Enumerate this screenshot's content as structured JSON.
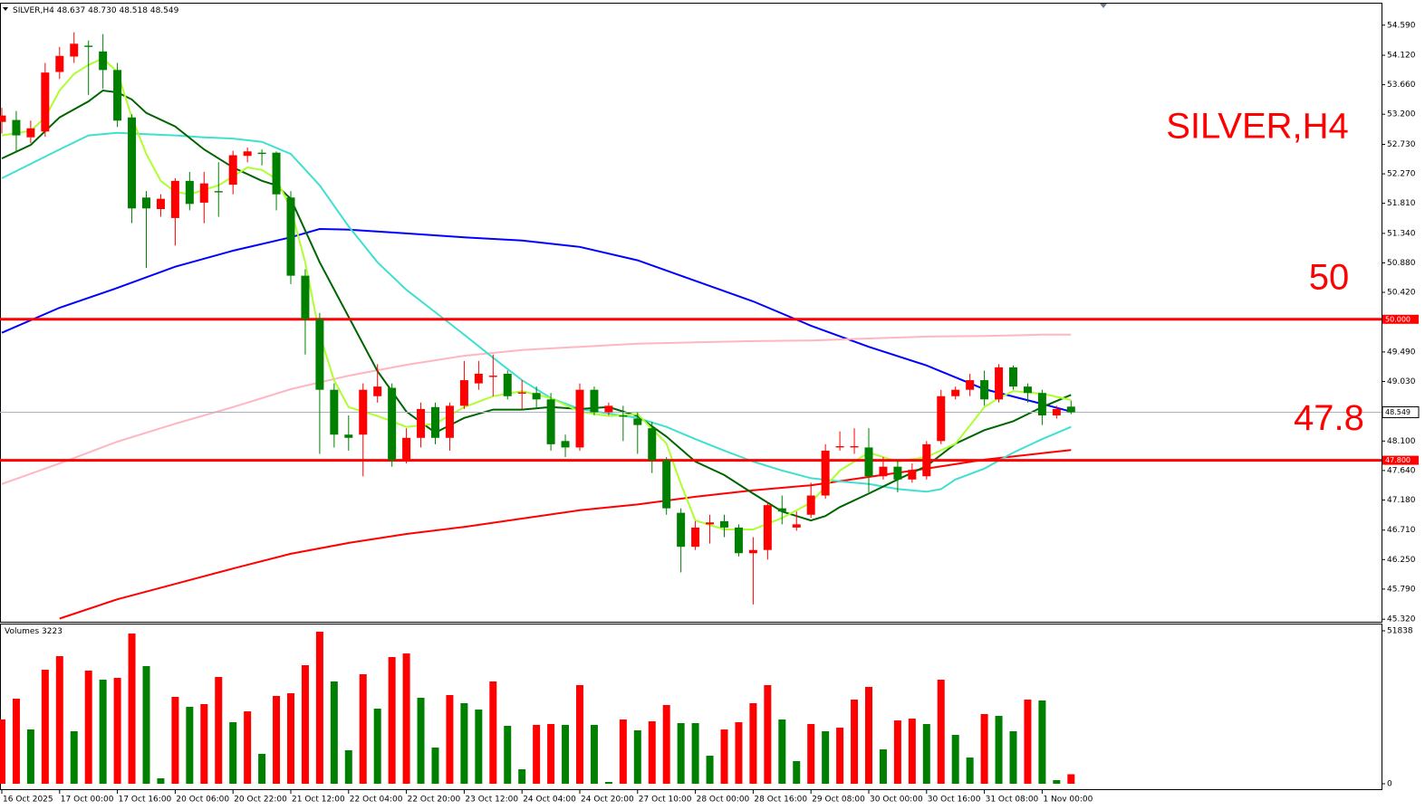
{
  "chart_data": [
    {
      "type": "candlestick",
      "title": "SILVER,H4",
      "ohlc_labels": [
        "48.637",
        "48.730",
        "48.518",
        "48.549"
      ],
      "categories": [
        "16 Oct 2025",
        null,
        null,
        null,
        "17 Oct 00:00",
        null,
        null,
        null,
        "17 Oct 16:00",
        null,
        null,
        null,
        "20 Oct 06:00",
        null,
        null,
        null,
        "20 Oct 22:00",
        null,
        null,
        null,
        "21 Oct 12:00",
        null,
        null,
        null,
        "22 Oct 04:00",
        null,
        null,
        null,
        "22 Oct 20:00",
        null,
        null,
        null,
        "23 Oct 12:00",
        null,
        null,
        null,
        "24 Oct 04:00",
        null,
        null,
        null,
        "24 Oct 20:00",
        null,
        null,
        null,
        "27 Oct 10:00",
        null,
        null,
        null,
        "28 Oct 00:00",
        null,
        null,
        null,
        "28 Oct 16:00",
        null,
        null,
        null,
        "29 Oct 08:00",
        null,
        null,
        null,
        "30 Oct 00:00",
        null,
        null,
        null,
        "30 Oct 16:00",
        null,
        null,
        null,
        "31 Oct 08:00",
        null,
        null,
        null,
        "1 Nov 00:00",
        null,
        null
      ],
      "open": [
        53.08,
        53.11,
        52.84,
        52.93,
        53.86,
        54.1,
        54.27,
        54.18,
        53.89,
        53.15,
        51.9,
        51.72,
        51.58,
        52.16,
        51.82,
        52.0,
        52.1,
        52.55,
        52.6,
        52.6,
        51.9,
        50.68,
        50.0,
        48.9,
        48.2,
        48.2,
        48.8,
        48.93,
        47.8,
        48.15,
        48.63,
        48.15,
        48.65,
        49.0,
        49.1,
        49.15,
        48.84,
        48.85,
        48.75,
        48.1,
        48.0,
        48.9,
        48.55,
        48.5,
        48.45,
        48.3,
        47.8,
        46.98,
        46.45,
        46.8,
        46.85,
        46.75,
        46.35,
        46.4,
        47.05,
        46.75,
        46.95,
        47.25,
        48.0,
        48.0,
        48.0,
        47.55,
        47.7,
        47.5,
        47.55,
        48.1,
        48.8,
        48.9,
        49.05,
        48.75,
        49.25,
        48.95,
        48.85,
        48.5,
        48.637
      ],
      "high": [
        53.3,
        53.25,
        53.1,
        54.0,
        54.25,
        54.48,
        54.35,
        54.45,
        54.0,
        53.2,
        52.0,
        51.95,
        52.2,
        52.3,
        52.3,
        52.45,
        52.63,
        52.68,
        52.65,
        52.62,
        52.0,
        50.78,
        50.1,
        49.0,
        48.5,
        49.0,
        49.3,
        49.0,
        48.3,
        48.7,
        48.7,
        48.7,
        49.35,
        49.35,
        49.45,
        49.2,
        49.05,
        48.95,
        48.85,
        48.2,
        49.0,
        48.95,
        48.7,
        48.65,
        48.55,
        48.4,
        47.85,
        47.05,
        46.85,
        46.95,
        46.95,
        46.8,
        46.6,
        47.15,
        47.25,
        47.0,
        47.45,
        48.05,
        48.25,
        48.3,
        48.3,
        47.85,
        47.8,
        47.75,
        48.1,
        48.9,
        48.95,
        49.15,
        49.2,
        49.3,
        49.28,
        49.0,
        48.9,
        48.65,
        48.73
      ],
      "low": [
        52.9,
        52.6,
        52.75,
        52.85,
        53.75,
        54.0,
        53.5,
        53.6,
        53.0,
        51.5,
        50.8,
        51.6,
        51.15,
        51.7,
        51.5,
        51.6,
        51.95,
        52.45,
        52.4,
        51.7,
        50.55,
        49.45,
        47.9,
        48.0,
        47.95,
        47.55,
        48.7,
        47.7,
        47.75,
        48.0,
        48.05,
        47.95,
        48.6,
        48.9,
        48.8,
        48.75,
        48.6,
        48.6,
        47.95,
        47.85,
        47.95,
        48.5,
        48.5,
        48.1,
        47.9,
        47.6,
        46.95,
        46.05,
        46.4,
        46.5,
        46.6,
        46.3,
        45.55,
        46.25,
        46.8,
        46.7,
        46.9,
        47.2,
        47.95,
        47.9,
        47.3,
        47.5,
        47.3,
        47.45,
        47.5,
        48.05,
        48.75,
        48.8,
        48.65,
        48.7,
        48.9,
        48.7,
        48.35,
        48.45,
        48.518
      ],
      "close": [
        53.18,
        52.87,
        52.98,
        53.85,
        54.11,
        54.3,
        54.25,
        53.89,
        53.1,
        51.73,
        51.73,
        51.88,
        52.16,
        51.8,
        52.12,
        51.98,
        52.56,
        52.62,
        52.58,
        51.95,
        50.68,
        50.0,
        48.9,
        48.2,
        48.15,
        48.9,
        48.95,
        47.8,
        48.15,
        48.6,
        48.15,
        48.65,
        49.05,
        49.15,
        49.12,
        48.8,
        48.86,
        48.75,
        48.05,
        48.0,
        48.9,
        48.55,
        48.65,
        48.48,
        48.35,
        47.8,
        47.05,
        46.45,
        46.75,
        46.83,
        46.75,
        46.35,
        46.4,
        47.1,
        47.0,
        46.8,
        47.25,
        47.95,
        48.02,
        48.02,
        47.55,
        47.7,
        47.5,
        47.65,
        48.05,
        48.8,
        48.9,
        49.05,
        48.75,
        49.25,
        48.95,
        48.85,
        48.5,
        48.6,
        48.549
      ],
      "up_color": "#ff0000",
      "down_color": "#008000",
      "lines": [
        {
          "color": "#0000ff",
          "x": [
            0,
            4,
            8,
            12,
            16,
            20,
            22,
            24,
            28,
            32,
            36,
            40,
            44,
            48,
            52,
            56,
            60,
            64,
            68,
            72,
            74
          ],
          "values": [
            49.79,
            50.18,
            50.49,
            50.82,
            51.07,
            51.28,
            51.41,
            51.4,
            51.34,
            51.28,
            51.23,
            51.13,
            50.92,
            50.6,
            50.28,
            49.9,
            49.57,
            49.28,
            48.91,
            48.68,
            48.56
          ]
        },
        {
          "color": "#ffb6c1",
          "x": [
            0,
            4,
            8,
            12,
            16,
            20,
            24,
            28,
            32,
            36,
            40,
            44,
            48,
            52,
            56,
            60,
            64,
            68,
            72,
            74
          ],
          "values": [
            47.43,
            47.75,
            48.09,
            48.37,
            48.63,
            48.91,
            49.12,
            49.29,
            49.43,
            49.52,
            49.57,
            49.62,
            49.64,
            49.66,
            49.67,
            49.7,
            49.73,
            49.74,
            49.76,
            49.76
          ]
        },
        {
          "color": "#ff0000",
          "x": [
            4,
            8,
            12,
            16,
            20,
            24,
            28,
            32,
            36,
            40,
            44,
            48,
            52,
            56,
            60,
            64,
            68,
            72,
            74
          ],
          "values": [
            45.33,
            45.63,
            45.87,
            46.11,
            46.34,
            46.51,
            46.65,
            46.76,
            46.89,
            47.02,
            47.11,
            47.23,
            47.33,
            47.41,
            47.54,
            47.67,
            47.81,
            47.91,
            47.96
          ]
        },
        {
          "color": "#40e0d0",
          "x": [
            0,
            4,
            6,
            8,
            10,
            12,
            14,
            16,
            18,
            20,
            22,
            24,
            26,
            28,
            30,
            32,
            34,
            36,
            38,
            40,
            42,
            44,
            46,
            48,
            50,
            52,
            54,
            56,
            58,
            60,
            62,
            64,
            65,
            66,
            68,
            70,
            72,
            74
          ],
          "values": [
            52.2,
            52.65,
            52.87,
            52.91,
            52.89,
            52.87,
            52.84,
            52.82,
            52.77,
            52.58,
            52.09,
            51.45,
            50.89,
            50.46,
            50.11,
            49.76,
            49.4,
            49.05,
            48.77,
            48.6,
            48.53,
            48.46,
            48.32,
            48.13,
            47.95,
            47.78,
            47.64,
            47.52,
            47.47,
            47.43,
            47.35,
            47.31,
            47.35,
            47.5,
            47.67,
            47.92,
            48.13,
            48.32
          ]
        },
        {
          "color": "#006400",
          "x": [
            0,
            2,
            4,
            6,
            7,
            8,
            9,
            10,
            12,
            14,
            16,
            18,
            19,
            20,
            22,
            24,
            26,
            28,
            30,
            32,
            34,
            36,
            38,
            40,
            42,
            44,
            46,
            48,
            50,
            52,
            54,
            56,
            57,
            58,
            60,
            62,
            64,
            66,
            68,
            70,
            72,
            74
          ],
          "values": [
            52.51,
            52.72,
            53.15,
            53.4,
            53.57,
            53.54,
            53.43,
            53.22,
            53.01,
            52.65,
            52.37,
            52.16,
            52.09,
            51.88,
            50.89,
            50.04,
            49.19,
            48.56,
            48.23,
            48.46,
            48.59,
            48.59,
            48.63,
            48.6,
            48.63,
            48.49,
            48.17,
            47.78,
            47.57,
            47.28,
            47.0,
            46.86,
            46.93,
            47.07,
            47.28,
            47.5,
            47.71,
            48.06,
            48.27,
            48.41,
            48.63,
            48.82
          ]
        },
        {
          "color": "#adff2f",
          "x": [
            0,
            2,
            3,
            4,
            5,
            6,
            7,
            8,
            9,
            10,
            11,
            12,
            13,
            14,
            15,
            16,
            17,
            18,
            19,
            20,
            21,
            22,
            23,
            24,
            26,
            27,
            28,
            30,
            32,
            34,
            36,
            38,
            40,
            42,
            44,
            46,
            47,
            48,
            50,
            52,
            54,
            56,
            58,
            60,
            62,
            64,
            66,
            67,
            68,
            69,
            70,
            72,
            74
          ],
          "values": [
            52.87,
            52.94,
            53.15,
            53.57,
            53.83,
            53.97,
            54.07,
            53.86,
            53.15,
            52.58,
            52.16,
            51.99,
            51.95,
            52.02,
            52.09,
            52.23,
            52.37,
            52.33,
            52.19,
            51.73,
            50.89,
            49.76,
            49.05,
            48.63,
            48.49,
            48.41,
            48.32,
            48.37,
            48.63,
            48.8,
            48.88,
            48.77,
            48.56,
            48.49,
            48.52,
            48.06,
            47.43,
            46.86,
            46.72,
            46.72,
            46.9,
            47.14,
            47.64,
            47.92,
            47.78,
            47.85,
            48.06,
            48.34,
            48.63,
            48.77,
            48.88,
            48.84,
            48.74
          ]
        }
      ],
      "levels": [
        {
          "value": 50,
          "label": "50.000",
          "color": "#ff0000"
        },
        {
          "value": 47.8,
          "label": "47.800",
          "color": "#ff0000"
        }
      ],
      "ylim": [
        45.28,
        54.94
      ],
      "yticks": [
        {
          "value": 54.59,
          "label": "54.590"
        },
        {
          "value": 54.12,
          "label": "54.120"
        },
        {
          "value": 53.66,
          "label": "53.660"
        },
        {
          "value": 53.2,
          "label": "53.200"
        },
        {
          "value": 52.73,
          "label": "52.730"
        },
        {
          "value": 52.27,
          "label": "52.270"
        },
        {
          "value": 51.81,
          "label": "51.810"
        },
        {
          "value": 51.34,
          "label": "51.340"
        },
        {
          "value": 50.88,
          "label": "50.880"
        },
        {
          "value": 50.42,
          "label": "50.420"
        },
        {
          "value": 49.49,
          "label": "49.490"
        },
        {
          "value": 49.03,
          "label": "49.030"
        },
        {
          "value": 48.1,
          "label": "48.100"
        },
        {
          "value": 47.64,
          "label": "47.640"
        },
        {
          "value": 47.18,
          "label": "47.180"
        },
        {
          "value": 46.71,
          "label": "46.710"
        },
        {
          "value": 46.25,
          "label": "46.250"
        },
        {
          "value": 45.79,
          "label": "45.790"
        },
        {
          "value": 45.32,
          "label": "45.320"
        }
      ]
    },
    {
      "type": "volume",
      "title": "Volumes",
      "values": [
        21800,
        28830,
        18400,
        38640,
        43240,
        17790,
        38340,
        35270,
        35880,
        50910,
        39870,
        1840,
        29440,
        26070,
        26990,
        36190,
        20860,
        24540,
        10120,
        29750,
        30670,
        40180,
        51530,
        34660,
        11350,
        37110,
        25460,
        42940,
        44160,
        29140,
        12270,
        30060,
        27300,
        25150,
        34660,
        19630,
        4910,
        19940,
        20240,
        19940,
        33430,
        19940,
        610,
        21780,
        18100,
        21160,
        26680,
        20550,
        20550,
        9510,
        18400,
        20860,
        27300,
        33430,
        21780,
        7670,
        20240,
        17790,
        19020,
        28520,
        32820,
        11650,
        21470,
        22080,
        20240,
        35270,
        16560,
        8890,
        23620,
        23000,
        17790,
        28520,
        28220,
        1230,
        3223
      ],
      "up_color": "#ff0000",
      "down_color": "#008000",
      "ylim": [
        -1840,
        53980
      ],
      "yticks": [
        0,
        51838
      ]
    }
  ]
}
